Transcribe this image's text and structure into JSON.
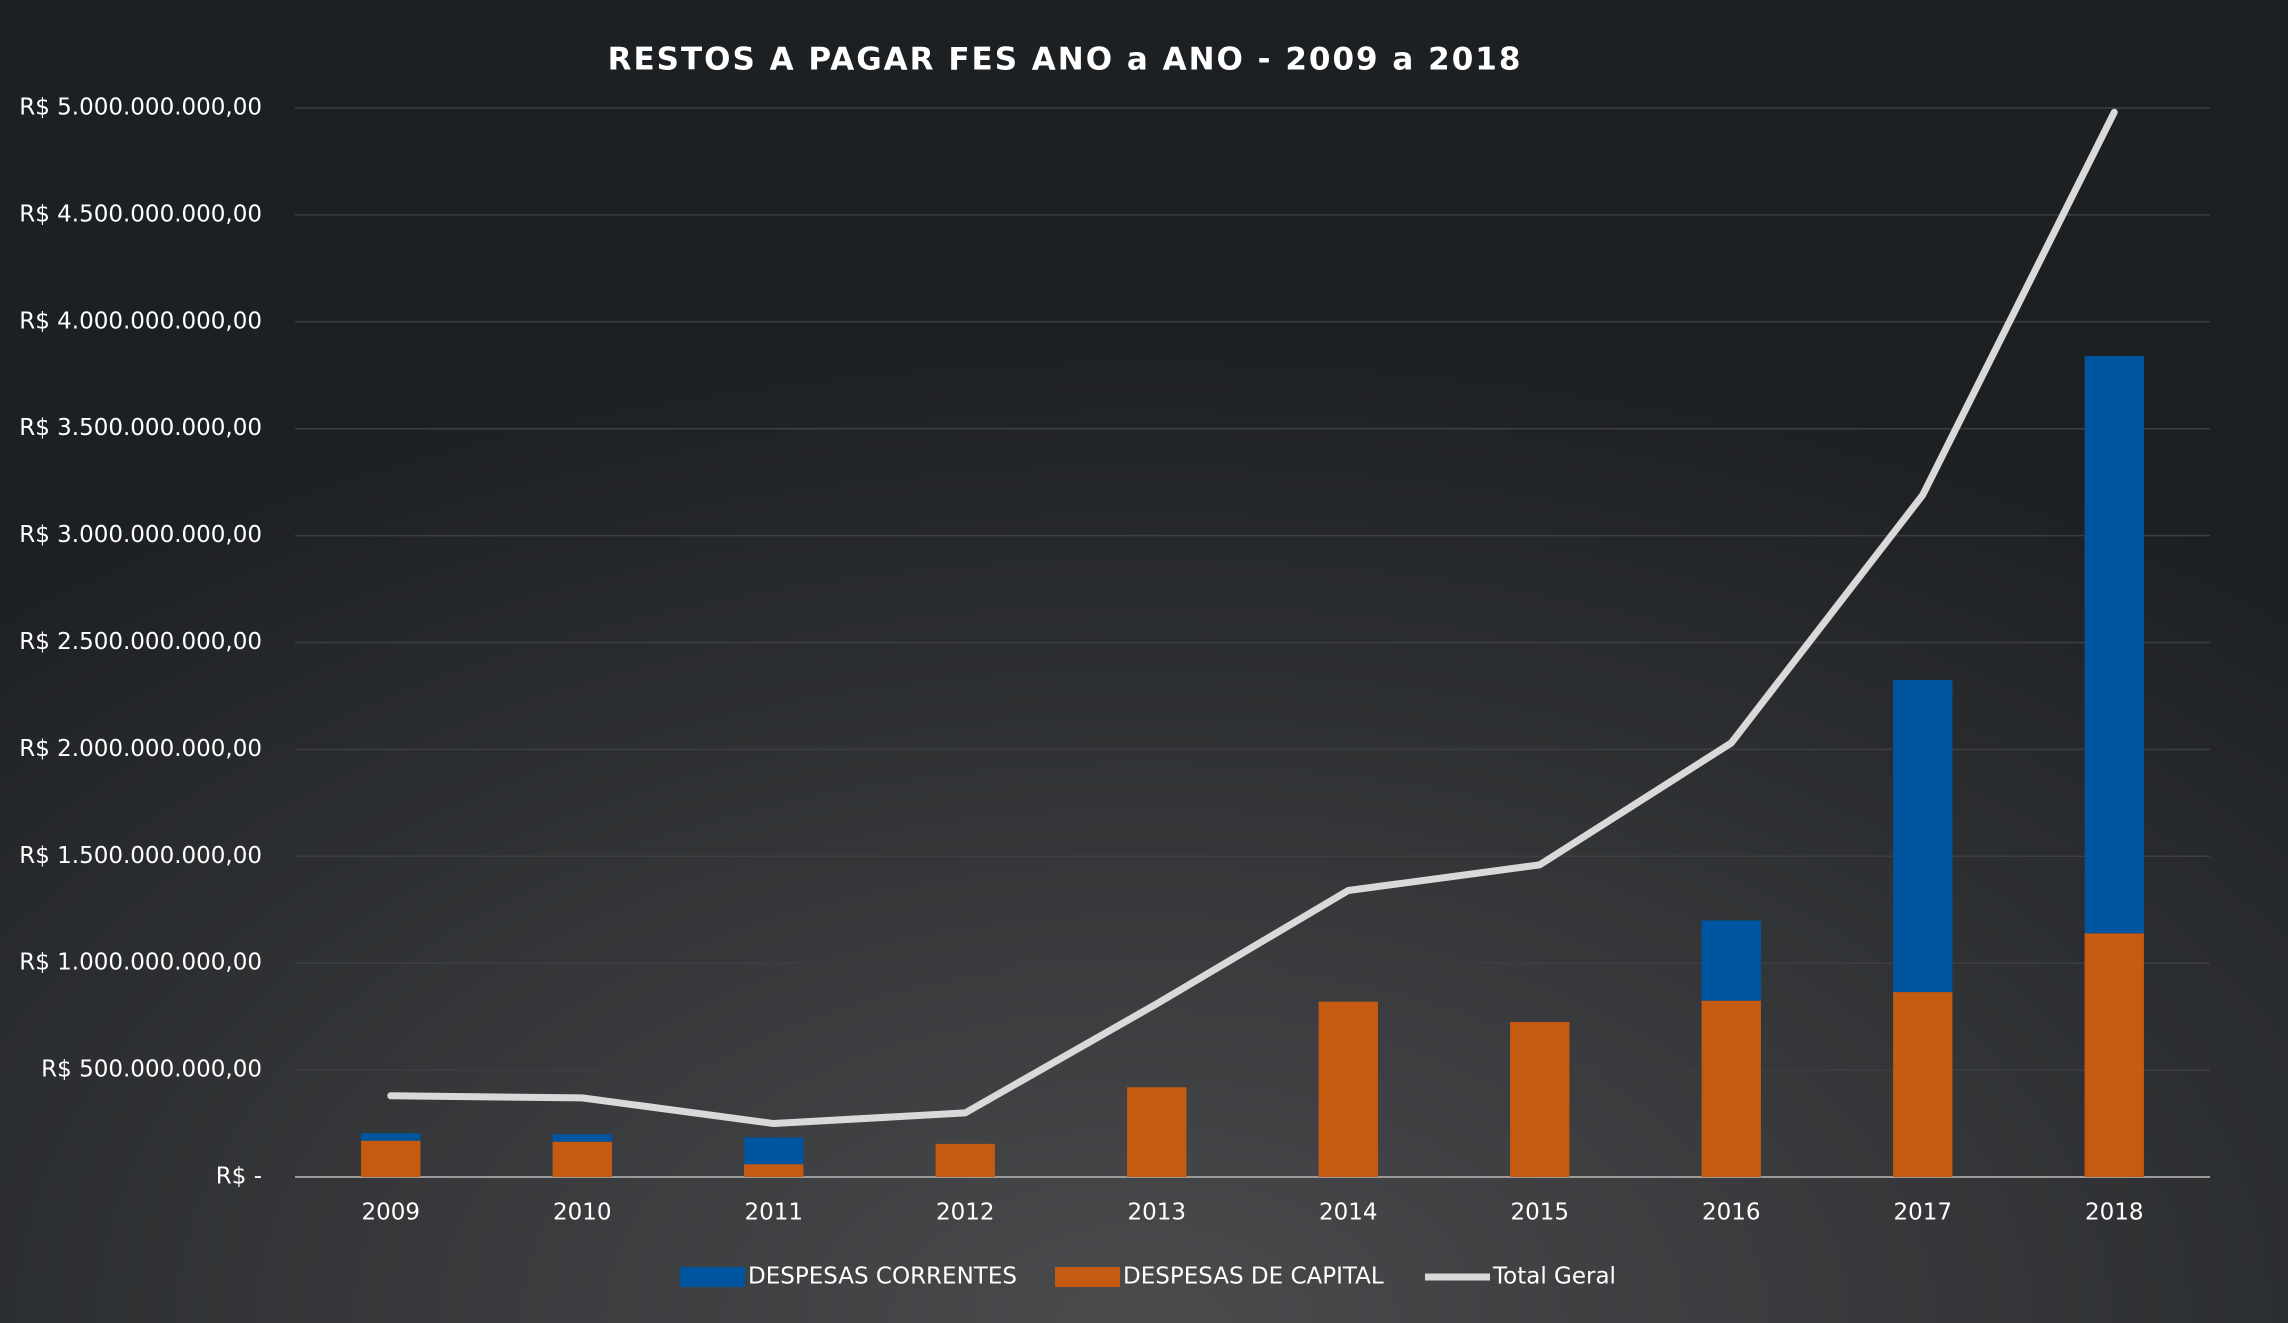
{
  "chart_data": {
    "type": "bar",
    "title": "RESTOS A PAGAR FES ANO a ANO - 2009 a 2018",
    "categories": [
      "2009",
      "2010",
      "2011",
      "2012",
      "2013",
      "2014",
      "2015",
      "2016",
      "2017",
      "2018"
    ],
    "series": [
      {
        "name": "DESPESAS CORRENTES",
        "color": "#0055a0",
        "type": "bar",
        "values": [
          35000000,
          35000000,
          125000000,
          0,
          0,
          0,
          0,
          375000000,
          1460000000,
          2700000000
        ]
      },
      {
        "name": "DESPESAS DE CAPITAL",
        "color": "#c55a11",
        "type": "bar",
        "values": [
          170000000,
          165000000,
          60000000,
          155000000,
          420000000,
          820000000,
          725000000,
          825000000,
          865000000,
          1140000000
        ]
      },
      {
        "name": "Total Geral",
        "color": "#d9d9d9",
        "type": "line",
        "values": [
          380000000,
          370000000,
          250000000,
          300000000,
          810000000,
          1340000000,
          1460000000,
          2030000000,
          3190000000,
          4980000000
        ]
      }
    ],
    "ylim": [
      0,
      5000000000
    ],
    "yticks": [
      {
        "value": 0,
        "label": "R$ -"
      },
      {
        "value": 500000000,
        "label": "R$ 500.000.000,00"
      },
      {
        "value": 1000000000,
        "label": "R$ 1.000.000.000,00"
      },
      {
        "value": 1500000000,
        "label": "R$ 1.500.000.000,00"
      },
      {
        "value": 2000000000,
        "label": "R$ 2.000.000.000,00"
      },
      {
        "value": 2500000000,
        "label": "R$ 2.500.000.000,00"
      },
      {
        "value": 3000000000,
        "label": "R$ 3.000.000.000,00"
      },
      {
        "value": 3500000000,
        "label": "R$ 3.500.000.000,00"
      },
      {
        "value": 4000000000,
        "label": "R$ 4.000.000.000,00"
      },
      {
        "value": 4500000000,
        "label": "R$ 4.500.000.000,00"
      },
      {
        "value": 5000000000,
        "label": "R$ 5.000.000.000,00"
      }
    ],
    "grid": true,
    "legend": "bottom"
  }
}
